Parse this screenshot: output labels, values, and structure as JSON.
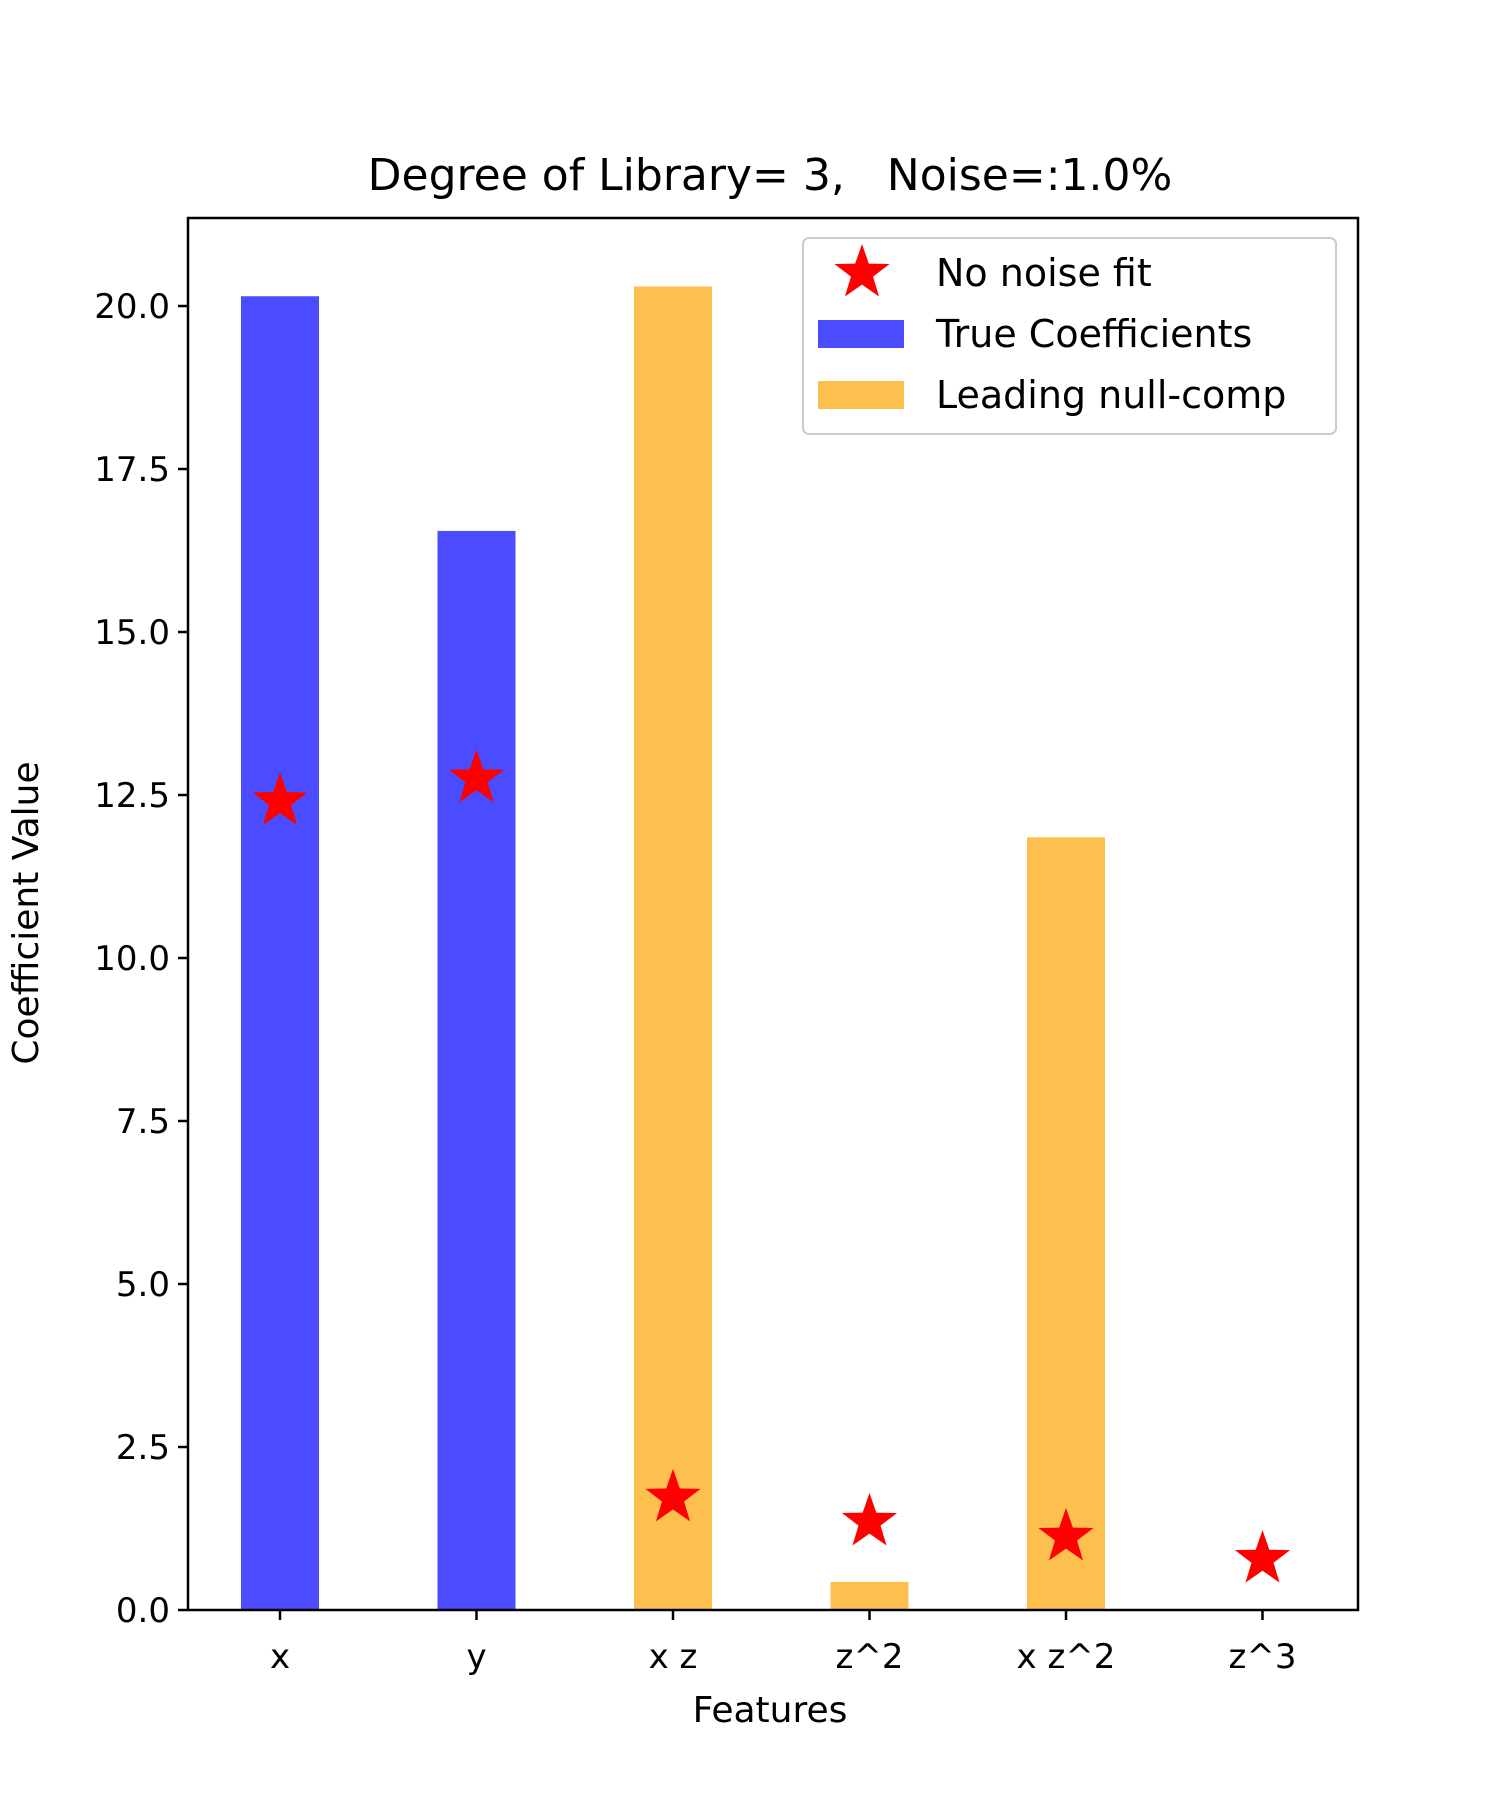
{
  "chart_data": {
    "type": "bar",
    "title": "Degree of Library= 3,   Noise=:1.0%",
    "xlabel": "Features",
    "ylabel": "Coefficient Value",
    "categories": [
      "x",
      "y",
      "x z",
      "z^2",
      "x z^2",
      "z^3"
    ],
    "ylim": [
      0,
      21.35
    ],
    "yticks": [
      0.0,
      2.5,
      5.0,
      7.5,
      10.0,
      12.5,
      15.0,
      17.5,
      20.0
    ],
    "grid": false,
    "legend_position": "top-right",
    "series": [
      {
        "name": "True Coefficients",
        "kind": "bar",
        "color": "#4b4bff",
        "values": [
          20.15,
          16.55,
          null,
          null,
          null,
          null
        ]
      },
      {
        "name": "Leading null-comp",
        "kind": "bar",
        "color": "#fdbf4e",
        "values": [
          null,
          null,
          20.3,
          0.43,
          11.85,
          null
        ]
      },
      {
        "name": "No noise fit",
        "kind": "marker",
        "marker": "star",
        "color": "#ff0000",
        "values": [
          12.4,
          12.75,
          1.72,
          1.35,
          1.12,
          0.78
        ]
      }
    ]
  }
}
